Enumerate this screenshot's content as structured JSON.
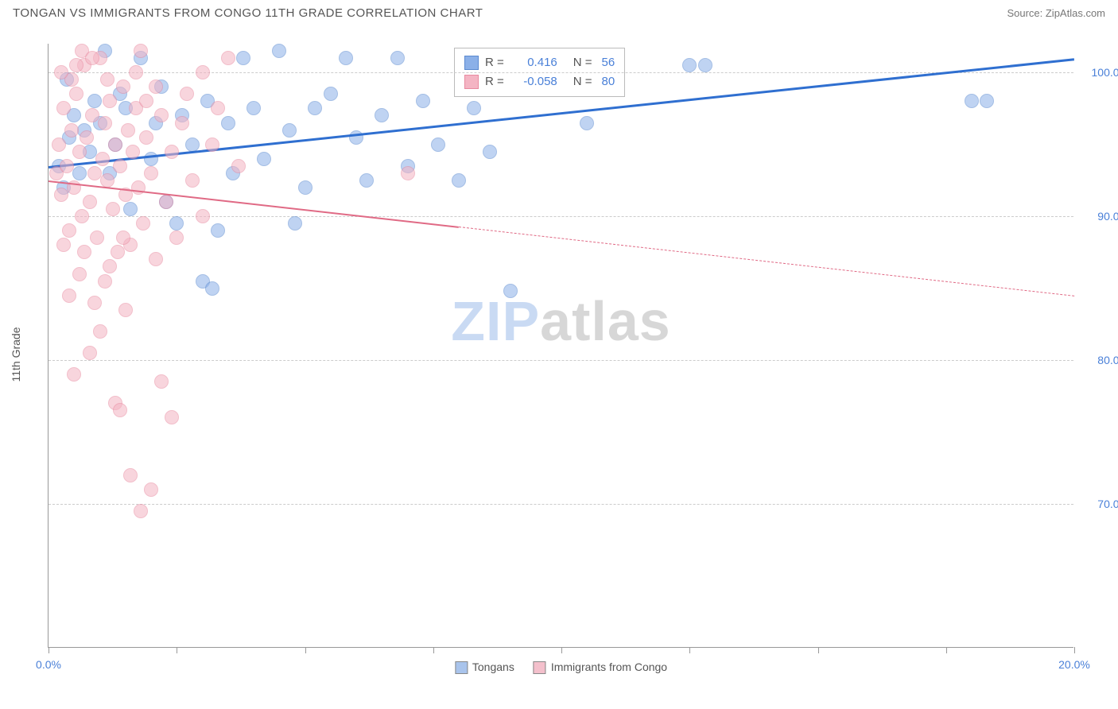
{
  "title": "TONGAN VS IMMIGRANTS FROM CONGO 11TH GRADE CORRELATION CHART",
  "source": "Source: ZipAtlas.com",
  "y_axis_title": "11th Grade",
  "watermark_z": "ZIP",
  "watermark_rest": "atlas",
  "chart": {
    "type": "scatter",
    "background_color": "#ffffff",
    "grid_color": "#cccccc",
    "xlim": [
      0,
      20
    ],
    "ylim": [
      60,
      102
    ],
    "x_ticks": [
      0,
      2.5,
      5,
      7.5,
      10,
      12.5,
      15,
      17.5,
      20
    ],
    "x_tick_labels": {
      "0": "0.0%",
      "20": "20.0%"
    },
    "x_tick_label_color": "#4a80d8",
    "y_gridlines": [
      70,
      80,
      90,
      100
    ],
    "y_tick_labels": {
      "70": "70.0%",
      "80": "80.0%",
      "90": "90.0%",
      "100": "100.0%"
    },
    "y_tick_label_color": "#4a80d8",
    "marker_radius": 9,
    "marker_opacity": 0.55,
    "series": [
      {
        "name": "Tongans",
        "color": "#8bb0e8",
        "stroke": "#5b8ad0",
        "r_value": "0.416",
        "n_value": "56",
        "trend": {
          "x1": 0,
          "y1": 93.5,
          "x2": 20,
          "y2": 101.0,
          "solid_until_x": 20,
          "color": "#2f6fd0",
          "width": 3
        },
        "points": [
          [
            0.2,
            93.5
          ],
          [
            0.3,
            92.0
          ],
          [
            0.4,
            95.5
          ],
          [
            0.5,
            97.0
          ],
          [
            0.6,
            93.0
          ],
          [
            0.7,
            96.0
          ],
          [
            0.8,
            94.5
          ],
          [
            0.9,
            98.0
          ],
          [
            1.0,
            96.5
          ],
          [
            1.1,
            101.5
          ],
          [
            1.2,
            93.0
          ],
          [
            1.3,
            95.0
          ],
          [
            1.5,
            97.5
          ],
          [
            1.6,
            90.5
          ],
          [
            1.8,
            101.0
          ],
          [
            2.0,
            94.0
          ],
          [
            2.1,
            96.5
          ],
          [
            2.3,
            91.0
          ],
          [
            2.5,
            89.5
          ],
          [
            2.6,
            97.0
          ],
          [
            2.8,
            95.0
          ],
          [
            3.0,
            85.5
          ],
          [
            3.1,
            98.0
          ],
          [
            3.3,
            89.0
          ],
          [
            3.5,
            96.5
          ],
          [
            3.6,
            93.0
          ],
          [
            3.8,
            101.0
          ],
          [
            4.0,
            97.5
          ],
          [
            4.2,
            94.0
          ],
          [
            4.5,
            101.5
          ],
          [
            4.7,
            96.0
          ],
          [
            5.0,
            92.0
          ],
          [
            5.2,
            97.5
          ],
          [
            5.5,
            98.5
          ],
          [
            5.8,
            101.0
          ],
          [
            6.0,
            95.5
          ],
          [
            6.2,
            92.5
          ],
          [
            6.5,
            97.0
          ],
          [
            6.8,
            101.0
          ],
          [
            7.0,
            93.5
          ],
          [
            7.3,
            98.0
          ],
          [
            7.6,
            95.0
          ],
          [
            8.0,
            92.5
          ],
          [
            8.3,
            97.5
          ],
          [
            8.6,
            94.5
          ],
          [
            9.0,
            84.8
          ],
          [
            10.5,
            96.5
          ],
          [
            12.5,
            100.5
          ],
          [
            12.8,
            100.5
          ],
          [
            18.0,
            98.0
          ],
          [
            18.3,
            98.0
          ],
          [
            3.2,
            85.0
          ],
          [
            1.4,
            98.5
          ],
          [
            0.35,
            99.5
          ],
          [
            2.2,
            99.0
          ],
          [
            4.8,
            89.5
          ]
        ]
      },
      {
        "name": "Immigrants from Congo",
        "color": "#f4b4c3",
        "stroke": "#e88aa0",
        "r_value": "-0.058",
        "n_value": "80",
        "trend": {
          "x1": 0,
          "y1": 92.5,
          "x2": 20,
          "y2": 84.5,
          "solid_until_x": 8.0,
          "color": "#e06a85",
          "width": 2
        },
        "points": [
          [
            0.15,
            93.0
          ],
          [
            0.2,
            95.0
          ],
          [
            0.25,
            91.5
          ],
          [
            0.3,
            97.5
          ],
          [
            0.35,
            93.5
          ],
          [
            0.4,
            89.0
          ],
          [
            0.45,
            96.0
          ],
          [
            0.5,
            92.0
          ],
          [
            0.55,
            98.5
          ],
          [
            0.6,
            94.5
          ],
          [
            0.65,
            90.0
          ],
          [
            0.7,
            100.5
          ],
          [
            0.75,
            95.5
          ],
          [
            0.8,
            91.0
          ],
          [
            0.85,
            97.0
          ],
          [
            0.9,
            93.0
          ],
          [
            0.95,
            88.5
          ],
          [
            1.0,
            101.0
          ],
          [
            1.05,
            94.0
          ],
          [
            1.1,
            96.5
          ],
          [
            1.15,
            92.5
          ],
          [
            1.2,
            98.0
          ],
          [
            1.25,
            90.5
          ],
          [
            1.3,
            95.0
          ],
          [
            1.35,
            87.5
          ],
          [
            1.4,
            93.5
          ],
          [
            1.45,
            99.0
          ],
          [
            1.5,
            91.5
          ],
          [
            1.55,
            96.0
          ],
          [
            1.6,
            88.0
          ],
          [
            1.65,
            94.5
          ],
          [
            1.7,
            97.5
          ],
          [
            1.75,
            92.0
          ],
          [
            1.8,
            101.5
          ],
          [
            1.85,
            89.5
          ],
          [
            1.9,
            95.5
          ],
          [
            2.0,
            93.0
          ],
          [
            2.1,
            87.0
          ],
          [
            2.2,
            97.0
          ],
          [
            2.3,
            91.0
          ],
          [
            2.4,
            94.5
          ],
          [
            2.5,
            88.5
          ],
          [
            2.6,
            96.5
          ],
          [
            2.8,
            92.5
          ],
          [
            3.0,
            90.0
          ],
          [
            3.2,
            95.0
          ],
          [
            3.5,
            101.0
          ],
          [
            3.7,
            93.5
          ],
          [
            0.4,
            84.5
          ],
          [
            0.6,
            86.0
          ],
          [
            0.8,
            80.5
          ],
          [
            1.0,
            82.0
          ],
          [
            1.1,
            85.5
          ],
          [
            1.3,
            77.0
          ],
          [
            1.4,
            76.5
          ],
          [
            1.6,
            72.0
          ],
          [
            1.8,
            69.5
          ],
          [
            2.0,
            71.0
          ],
          [
            2.2,
            78.5
          ],
          [
            0.5,
            79.0
          ],
          [
            0.9,
            84.0
          ],
          [
            1.5,
            83.5
          ],
          [
            2.4,
            76.0
          ],
          [
            0.7,
            87.5
          ],
          [
            1.2,
            86.5
          ],
          [
            0.3,
            88.0
          ],
          [
            0.45,
            99.5
          ],
          [
            0.55,
            100.5
          ],
          [
            1.15,
            99.5
          ],
          [
            0.65,
            101.5
          ],
          [
            2.1,
            99.0
          ],
          [
            2.7,
            98.5
          ],
          [
            3.0,
            100.0
          ],
          [
            3.3,
            97.5
          ],
          [
            1.7,
            100.0
          ],
          [
            1.9,
            98.0
          ],
          [
            0.85,
            101.0
          ],
          [
            7.0,
            93.0
          ],
          [
            0.25,
            100.0
          ],
          [
            1.45,
            88.5
          ]
        ]
      }
    ]
  },
  "legend": {
    "r_label": "R =",
    "n_label": "N ="
  },
  "bottom_legend": [
    {
      "label": "Tongans",
      "swatch": "#a9c4ec"
    },
    {
      "label": "Immigrants from Congo",
      "swatch": "#f4c0cc"
    }
  ]
}
